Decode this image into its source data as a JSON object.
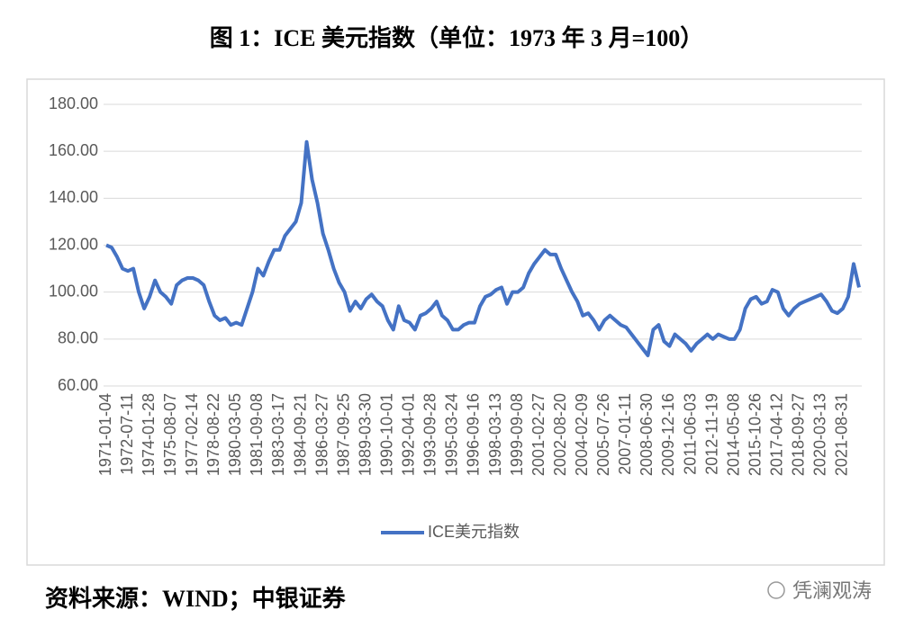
{
  "header": {
    "title": "图 1：ICE 美元指数（单位：1973 年 3 月=100）"
  },
  "chart_data": {
    "type": "line",
    "categories": [
      "1971-01-04",
      null,
      null,
      null,
      "1972-07-11",
      null,
      null,
      null,
      "1974-01-28",
      null,
      null,
      null,
      "1975-08-07",
      null,
      null,
      null,
      "1977-02-14",
      null,
      null,
      null,
      "1978-08-22",
      null,
      null,
      null,
      "1980-03-05",
      null,
      null,
      null,
      "1981-09-08",
      null,
      null,
      null,
      "1983-03-17",
      null,
      null,
      null,
      "1984-09-21",
      null,
      null,
      null,
      "1986-03-27",
      null,
      null,
      null,
      "1987-09-25",
      null,
      null,
      null,
      "1989-03-30",
      null,
      null,
      null,
      "1990-10-01",
      null,
      null,
      null,
      "1992-04-01",
      null,
      null,
      null,
      "1993-09-28",
      null,
      null,
      null,
      "1995-03-24",
      null,
      null,
      null,
      "1996-09-16",
      null,
      null,
      null,
      "1998-03-13",
      null,
      null,
      null,
      "1999-09-08",
      null,
      null,
      null,
      "2001-02-27",
      null,
      null,
      null,
      "2002-08-20",
      null,
      null,
      null,
      "2004-02-09",
      null,
      null,
      null,
      "2005-07-26",
      null,
      null,
      null,
      "2007-01-11",
      null,
      null,
      null,
      "2008-06-30",
      null,
      null,
      null,
      "2009-12-16",
      null,
      null,
      null,
      "2011-06-03",
      null,
      null,
      null,
      "2012-11-19",
      null,
      null,
      null,
      "2014-05-08",
      null,
      null,
      null,
      "2015-10-26",
      null,
      null,
      null,
      "2017-04-12",
      null,
      null,
      null,
      "2018-09-27",
      null,
      null,
      null,
      "2020-03-13",
      null,
      null,
      null,
      "2021-08-31",
      null,
      null,
      null
    ],
    "series": [
      {
        "name": "ICE美元指数",
        "color": "#4472c4",
        "values": [
          120,
          119,
          115,
          110,
          109,
          110,
          100,
          93,
          98,
          105,
          100,
          98,
          95,
          103,
          105,
          106,
          106,
          105,
          103,
          96,
          90,
          88,
          89,
          86,
          87,
          86,
          93,
          100,
          110,
          107,
          113,
          118,
          118,
          124,
          127,
          130,
          138,
          164,
          148,
          138,
          125,
          118,
          110,
          104,
          100,
          92,
          96,
          93,
          97,
          99,
          96,
          94,
          88,
          84,
          94,
          88,
          87,
          84,
          90,
          91,
          93,
          96,
          90,
          88,
          84,
          84,
          86,
          87,
          87,
          94,
          98,
          99,
          101,
          102,
          95,
          100,
          100,
          102,
          108,
          112,
          115,
          118,
          116,
          116,
          110,
          105,
          100,
          96,
          90,
          91,
          88,
          84,
          88,
          90,
          88,
          86,
          85,
          82,
          79,
          76,
          73,
          84,
          86,
          79,
          77,
          82,
          80,
          78,
          75,
          78,
          80,
          82,
          80,
          82,
          81,
          80,
          80,
          84,
          93,
          97,
          98,
          95,
          96,
          101,
          100,
          93,
          90,
          93,
          95,
          96,
          97,
          98,
          99,
          96,
          92,
          91,
          93,
          98,
          112,
          102
        ]
      }
    ],
    "ylim": [
      60,
      180
    ],
    "yticks": [
      {
        "value": 60,
        "label": "60.00"
      },
      {
        "value": 80,
        "label": "80.00"
      },
      {
        "value": 100,
        "label": "100.00"
      },
      {
        "value": 120,
        "label": "120.00"
      },
      {
        "value": 140,
        "label": "140.00"
      },
      {
        "value": 160,
        "label": "160.00"
      },
      {
        "value": 180,
        "label": "180.00"
      }
    ],
    "grid": true,
    "legend": "bottom"
  },
  "footer": {
    "source": "资料来源：WIND；中银证券",
    "watermark": "凭澜观涛"
  }
}
